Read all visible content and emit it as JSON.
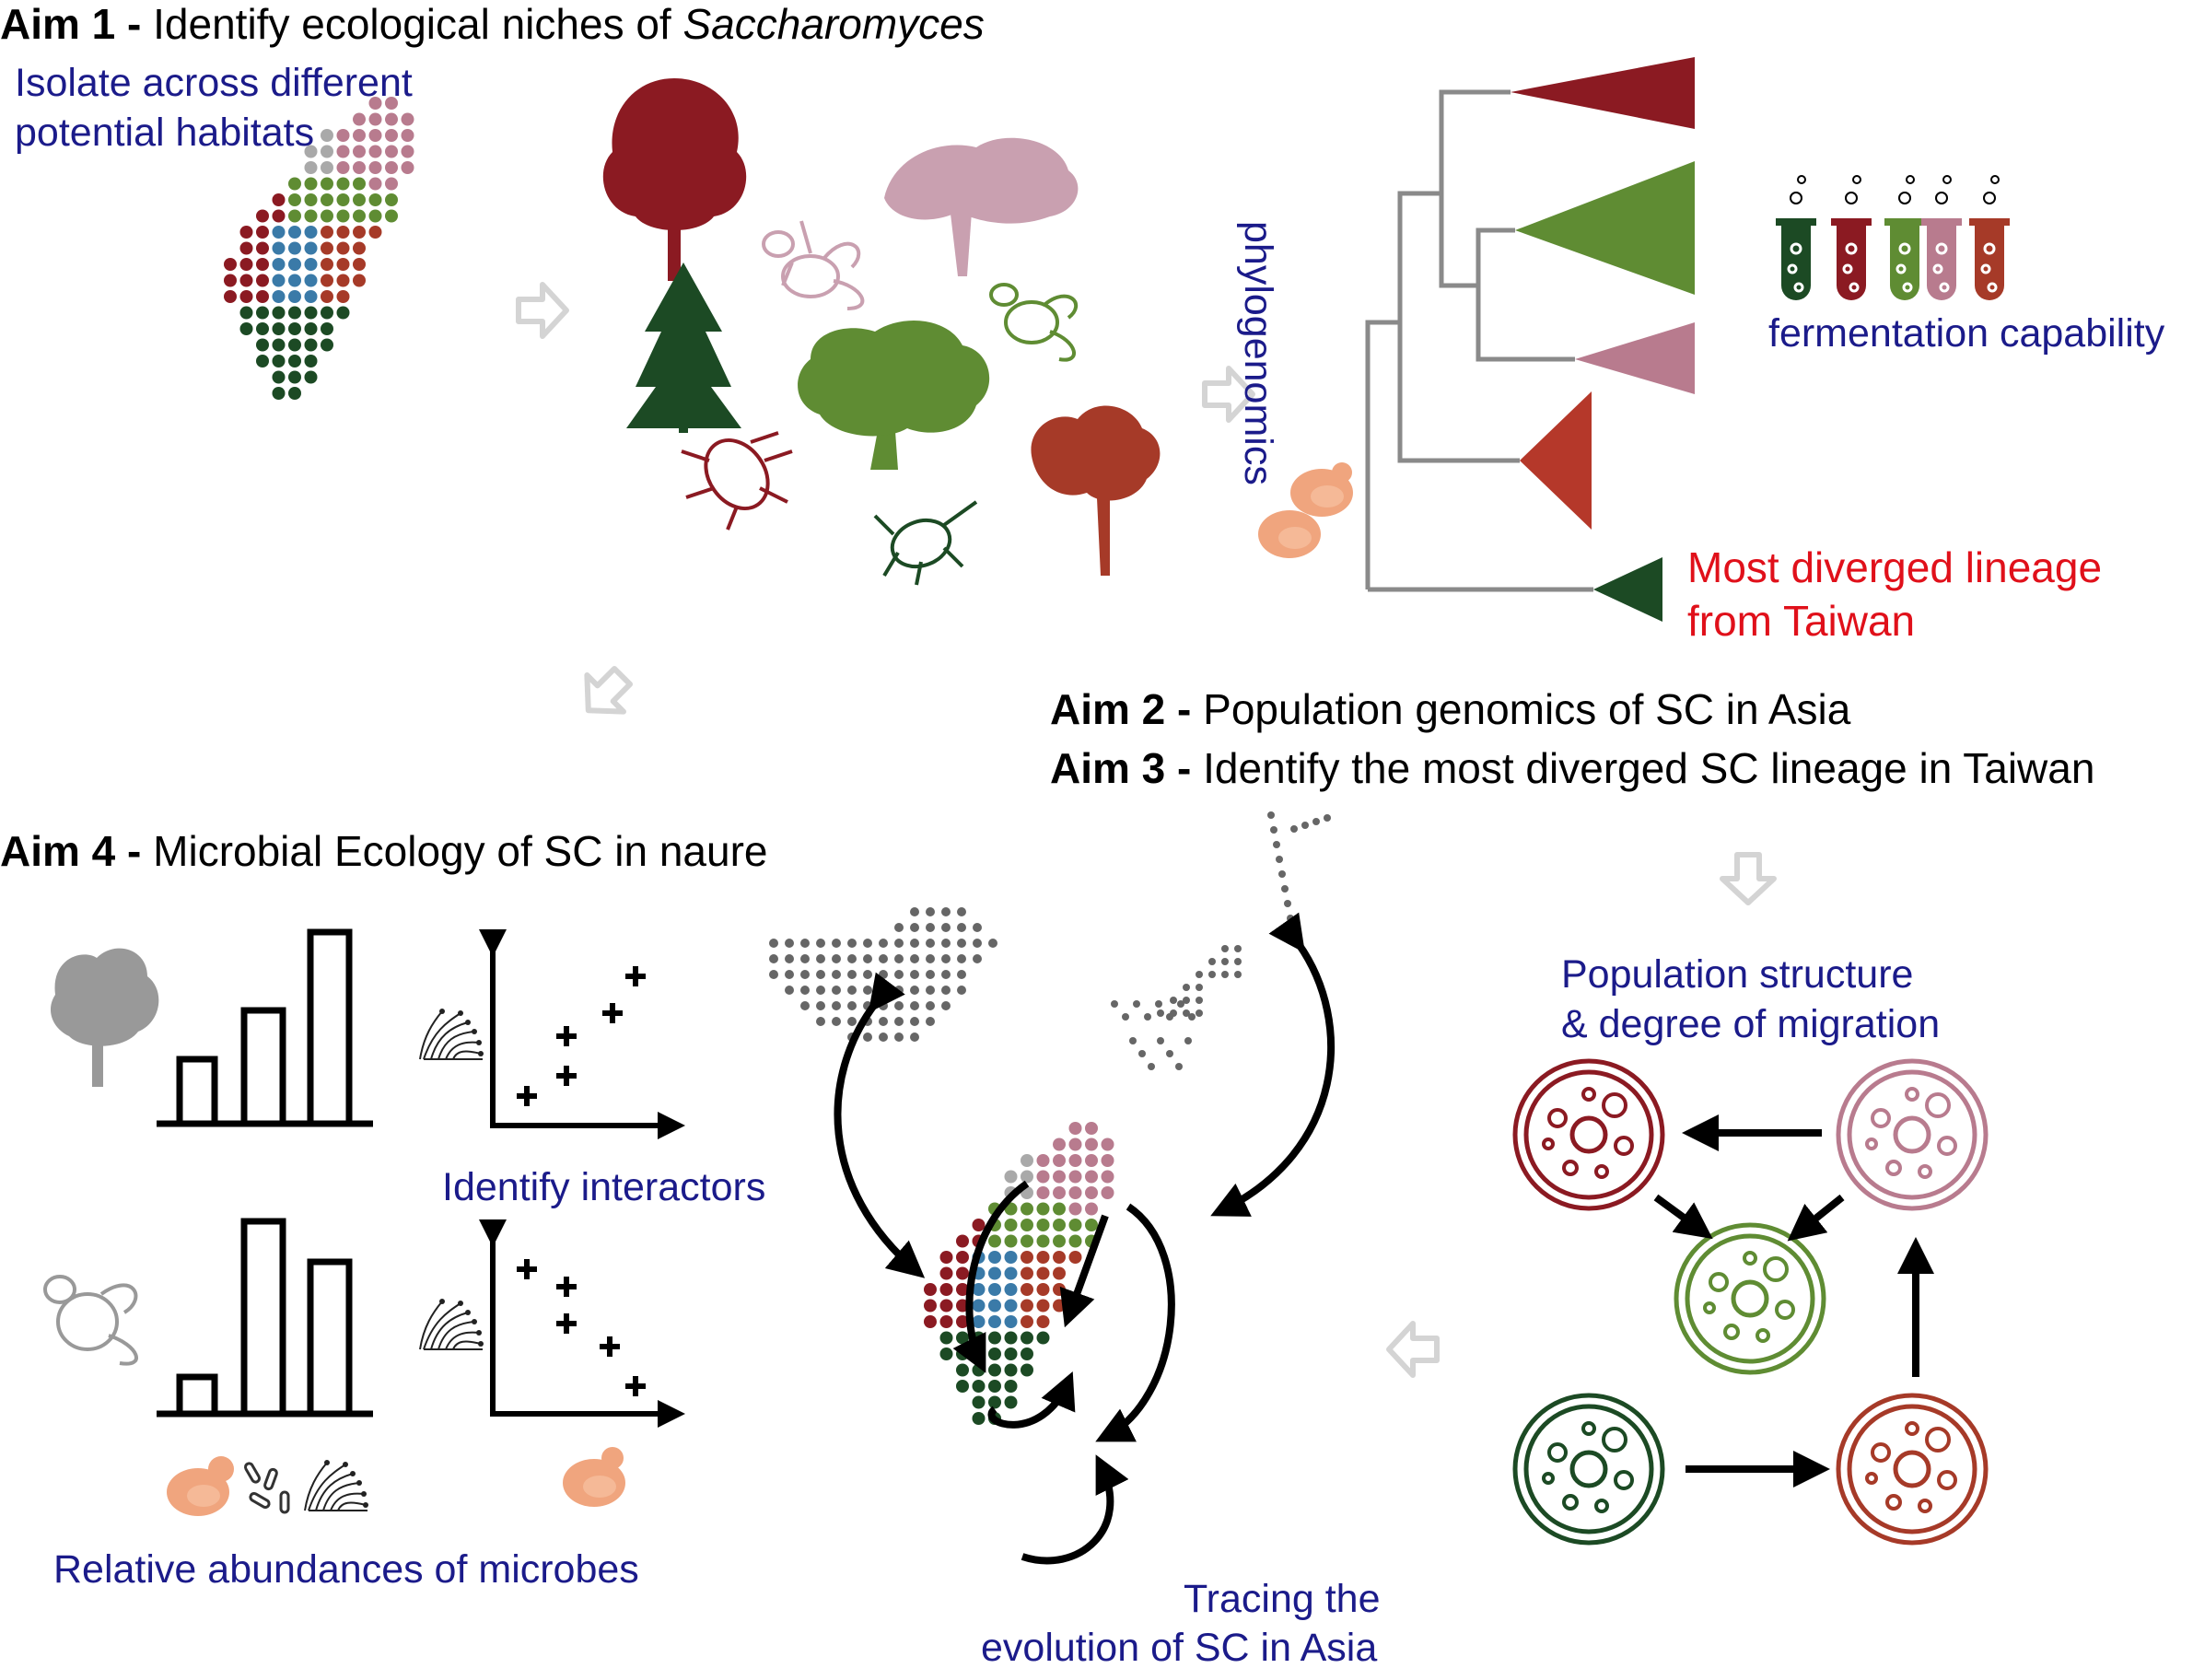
{
  "colors": {
    "dark_red": "#8b1a22",
    "pink": "#b87b8e",
    "green": "#5f8c33",
    "dark_green": "#1c4a24",
    "rust": "#a63a28",
    "blue": "#3a7aa8",
    "grey": "#a9a9a9",
    "label_blue": "#1b1b8a",
    "label_red": "#e0101a",
    "yeast": "#eaa07a"
  },
  "aim1": {
    "prefix": "Aim 1",
    "dash": " - ",
    "text": "Identify ecological niches of ",
    "genus": "Saccharomyces",
    "subtitle_line1": "Isolate across different",
    "subtitle_line2": "potential habitats"
  },
  "phylo": {
    "axis_label": "phylogenomics",
    "fermentation_label": "fermentation capability",
    "diverged_line1": "Most diverged lineage",
    "diverged_line2": "from Taiwan"
  },
  "aim2": {
    "prefix": "Aim 2",
    "dash": " - ",
    "text": "Population genomics of SC in Asia"
  },
  "aim3": {
    "prefix": "Aim 3",
    "dash": " - ",
    "text": "Identify the most diverged SC lineage in Taiwan"
  },
  "aim4": {
    "prefix": "Aim 4",
    "dash": " - ",
    "text": "Microbial Ecology of SC in naure"
  },
  "interactors_label": "Identify interactors",
  "abundance_label": "Relative abundances of microbes",
  "population_label_line1": "Population structure",
  "population_label_line2": "& degree of migration",
  "tracing_label_line1": "Tracing the",
  "tracing_label_line2": "evolution of SC in Asia",
  "icons": [
    "tree-icon",
    "conifer-icon",
    "insect-icon",
    "bee-icon",
    "beetle-icon",
    "yeast-icon",
    "test-tube-icon",
    "petri-dish-icon",
    "fungi-icon",
    "bacteria-icon",
    "arrow-icon"
  ]
}
